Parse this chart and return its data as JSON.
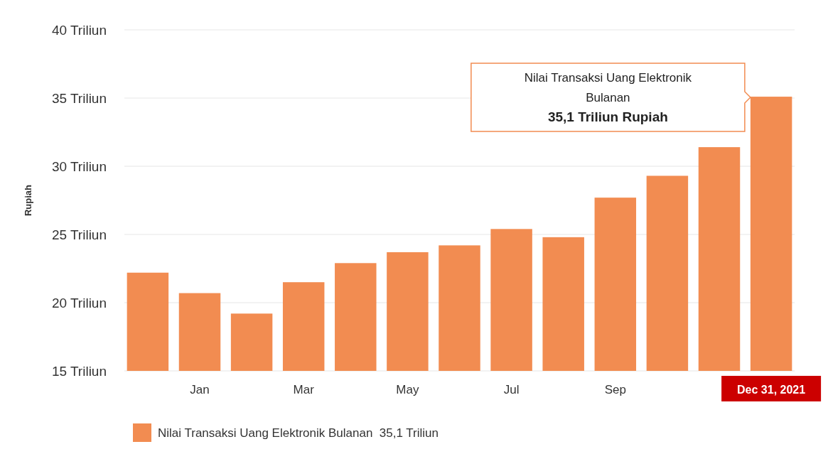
{
  "chart_data": {
    "type": "bar",
    "ylabel": "Rupiah",
    "categories": [
      null,
      "Jan",
      null,
      "Mar",
      null,
      "May",
      null,
      "Jul",
      null,
      "Sep",
      null,
      null,
      "Dec 31, 2021"
    ],
    "series": [
      {
        "name": "Nilai Transaksi Uang Elektronik Bulanan  35,1 Triliun",
        "color": "#f28c51",
        "values": [
          22.2,
          20.7,
          19.2,
          21.5,
          22.9,
          23.7,
          24.2,
          25.4,
          24.8,
          27.7,
          29.3,
          31.4,
          35.1
        ]
      }
    ],
    "ylim": [
      15,
      40
    ],
    "yticks": [
      {
        "value": 15,
        "label": "15 Triliun"
      },
      {
        "value": 20,
        "label": "20 Triliun"
      },
      {
        "value": 25,
        "label": "25 Triliun"
      },
      {
        "value": 30,
        "label": "30 Triliun"
      },
      {
        "value": 35,
        "label": "35 Triliun"
      },
      {
        "value": 40,
        "label": "40 Triliun"
      }
    ],
    "grid": "y",
    "legend": "bottom",
    "annotations": [
      "Nilai Transaksi Uang Elektronik\nBulanan\n35,1 Triliun Rupiah"
    ]
  }
}
